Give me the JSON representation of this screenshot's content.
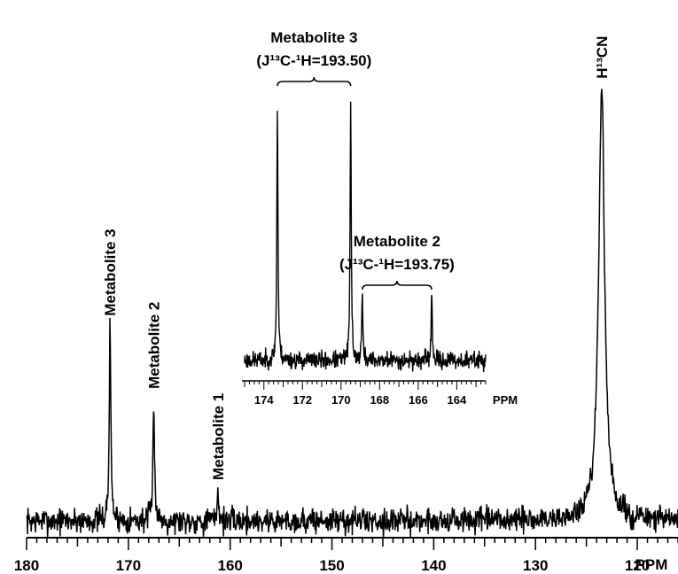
{
  "chart_data": {
    "type": "line",
    "title": "",
    "xlabel": "PPM",
    "ylabel": "",
    "x_reversed": true,
    "xlim": [
      180,
      116
    ],
    "xticks": [
      180,
      170,
      160,
      150,
      140,
      130,
      120
    ],
    "grid": false,
    "peaks": [
      {
        "label": "Metabolite 3",
        "x": 171.8,
        "height": 0.43
      },
      {
        "label": "Metabolite 2",
        "x": 167.5,
        "height": 0.27
      },
      {
        "label": "Metabolite 1",
        "x": 161.2,
        "height": 0.07
      },
      {
        "label": "H¹³CN",
        "x": 123.5,
        "height": 0.95
      }
    ],
    "inset": {
      "type": "line",
      "xlabel": "PPM",
      "xlim": [
        175,
        162.5
      ],
      "xticks": [
        174,
        172,
        170,
        168,
        166,
        164
      ],
      "peaks": [
        {
          "x": 173.3,
          "height": 0.95
        },
        {
          "x": 169.5,
          "height": 0.96
        },
        {
          "x": 168.9,
          "height": 0.24
        },
        {
          "x": 165.3,
          "height": 0.24
        }
      ],
      "annotations": [
        {
          "line1": "Metabolite 3",
          "line2": "(J¹³C-¹H=193.50)",
          "from": 173.3,
          "to": 169.5
        },
        {
          "line1": "Metabolite 2",
          "line2": "(J¹³C-¹H=193.75)",
          "from": 168.9,
          "to": 165.3
        }
      ]
    }
  }
}
